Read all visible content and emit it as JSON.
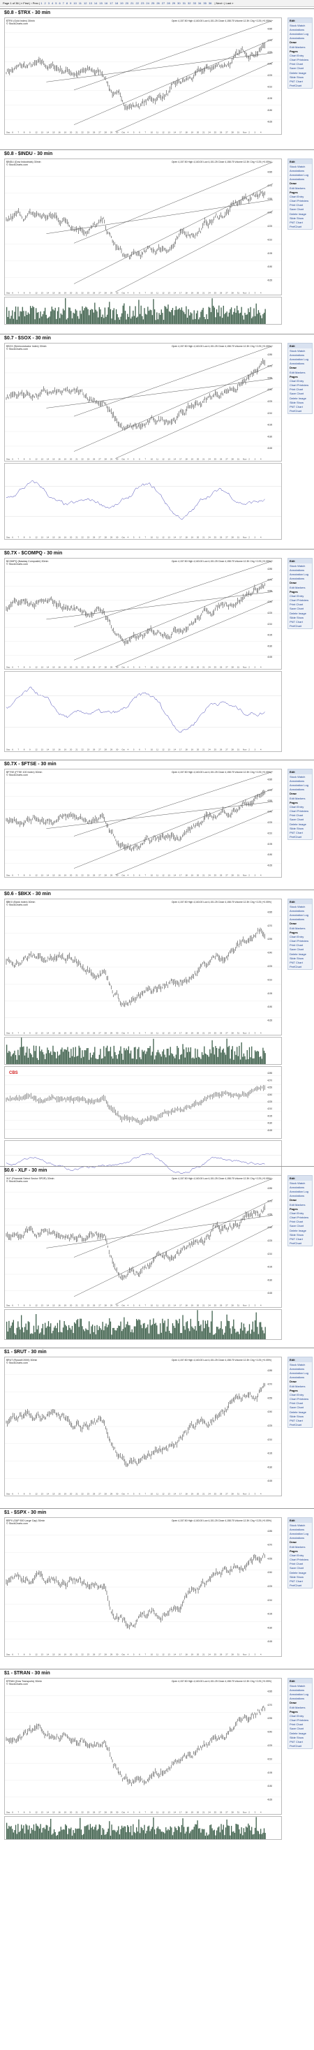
{
  "pager": {
    "prefix": "Page 1 of 36 | « First | ‹ Prev |",
    "pages": [
      "1",
      "2",
      "3",
      "4",
      "5",
      "6",
      "7",
      "8",
      "9",
      "10",
      "11",
      "12",
      "13",
      "14",
      "15",
      "16",
      "17",
      "18",
      "19",
      "20",
      "21",
      "22",
      "23",
      "24",
      "25",
      "26",
      "27",
      "28",
      "29",
      "30",
      "31",
      "32",
      "33",
      "34",
      "35",
      "36"
    ],
    "suffix": "| Next › | Last »"
  },
  "sidebar_items": [
    "Stock Watch",
    "Annotations",
    "Annotation Log",
    "Annotations",
    "Draw",
    "Edit Markers",
    "Pages",
    "Chart Entry",
    "Chart Printview",
    "Print Chart",
    "Save Chart",
    "Delete Image",
    "Slide Show",
    "PNT Chart",
    "PerfChart"
  ],
  "sidebar_header": "Edit",
  "readout_template": "Open 4,157.50  High 4,163.00  Low 4,151.25  Close 4,158.75  Volume 12.3K  Chg +2.25 (+0.05%)",
  "legend_line2": "© StockCharts.com",
  "panels": [
    {
      "title": "$0.8 - $TRX - 30 min",
      "legend": "$TRX (Gold Index) 30min",
      "type": "channel"
    },
    {
      "title": "$0.8 - $INDU - 30 min",
      "legend": "$INDU (Dow Industrials) 30min",
      "type": "channel_vol"
    },
    {
      "title": "$0.7 - $SOX - 30 min",
      "legend": "$SOX (Semiconductor Index) 30min",
      "type": "channel_osc"
    },
    {
      "title": "$0.7X - $COMPQ - 30 min",
      "legend": "$COMPQ (Nasdaq Composite) 30min",
      "type": "channel_osc"
    },
    {
      "title": "$0.7X - $FTSE - 30 min",
      "legend": "$FTSE (FTSE 100 Index) 30min",
      "type": "channel"
    },
    {
      "title": "$0.6 - $BKX - 30 min",
      "legend": "$BKX (Bank Index) 30min",
      "type": "multi",
      "note": "CBS"
    },
    {
      "title": "$0.6 - XLF - 30 min",
      "legend": "XLF (Financial Select Sector SPDR) 30min",
      "type": "channel_vol"
    },
    {
      "title": "$1 - $RUT - 30 min",
      "legend": "$RUT (Russell 2000) 30min",
      "type": "plain"
    },
    {
      "title": "$1 - $SPX - 30 min",
      "legend": "$SPX (S&P 500 Large Cap) 30min",
      "type": "plain"
    },
    {
      "title": "$1 - $TRAN - 30 min",
      "legend": "$TRAN (Dow Transports) 30min",
      "type": "plain_vol"
    }
  ],
  "x_ticks": [
    "Sep",
    "6",
    "7",
    "8",
    "9",
    "12",
    "13",
    "14",
    "15",
    "16",
    "19",
    "20",
    "21",
    "22",
    "23",
    "26",
    "27",
    "28",
    "29",
    "30",
    "Oct",
    "4",
    "5",
    "6",
    "7",
    "10",
    "11",
    "12",
    "13",
    "14",
    "17",
    "18",
    "19",
    "20",
    "21",
    "24",
    "25",
    "26",
    "27",
    "28",
    "31",
    "Nov",
    "2",
    "3",
    "4"
  ]
}
